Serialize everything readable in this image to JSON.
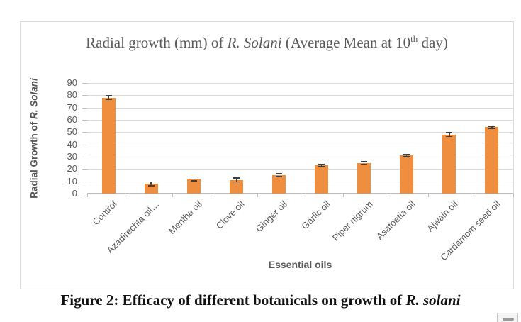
{
  "figure": {
    "title": {
      "prefix": "Radial growth (mm) of ",
      "species": "R. Solani",
      "mid": " (Average Mean at 10",
      "sup": "th",
      "suffix": " day)"
    },
    "y_axis_label": {
      "prefix": "Radial Growth of ",
      "species": "R. Solani"
    },
    "x_axis_label": "Essential oils",
    "caption": {
      "prefix": "Figure 2: Efficacy of different botanicals on growth of ",
      "species": "R. solani"
    }
  },
  "chart_data": {
    "type": "bar",
    "title": "Radial growth (mm) of R. Solani (Average Mean at 10th day)",
    "categories": [
      "Control",
      "Azadirechta oil…",
      "Mentha oil",
      "Clove oil",
      "Ginger oil",
      "Garlic oil",
      "Piper nigrum",
      "Asafoetia oil",
      "Ajwain oil",
      "Cardamom seed oil"
    ],
    "values": [
      78,
      8,
      12,
      11,
      15,
      23,
      25,
      31,
      48,
      54
    ],
    "error_bars": [
      1.5,
      1.5,
      1.5,
      1.5,
      1,
      1,
      1,
      1,
      1.5,
      1
    ],
    "xlabel": "Essential oils",
    "ylabel": "Radial Growth of R. Solani",
    "ylim": [
      0,
      90
    ],
    "ytick_step": 10,
    "grid": true,
    "legend": false,
    "bar_color": "#EF8E3F",
    "error_bar_color": "#3F3F3F",
    "gridline_color": "#D9D9D9",
    "axis_text_color": "#595959",
    "title_color": "#595959"
  }
}
